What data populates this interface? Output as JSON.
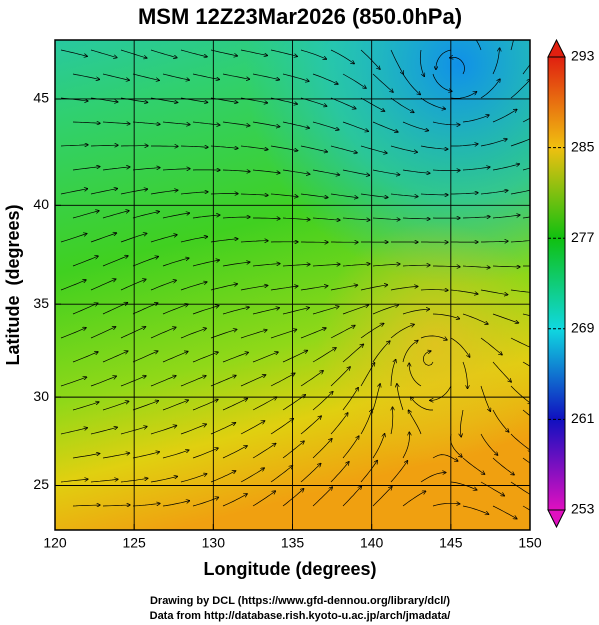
{
  "title": "MSM 12Z23Mar2026 (850.0hPa)",
  "x_axis": {
    "label": "Longitude (degrees)",
    "lim": [
      120,
      150
    ],
    "ticks": [
      120,
      125,
      130,
      135,
      140,
      145,
      150
    ]
  },
  "y_axis": {
    "label": "Latitude  (degrees)",
    "lim": [
      22.4,
      47.6
    ],
    "ticks": [
      25,
      30,
      35,
      40,
      45
    ],
    "projection": "mercator"
  },
  "grid": true,
  "colorbar": {
    "lim": [
      253,
      293
    ],
    "ticks": [
      253,
      261,
      269,
      277,
      285,
      293
    ],
    "colors": [
      "#e010c0",
      "#1010c0",
      "#10d8e0",
      "#10c010",
      "#f0c010",
      "#e02010"
    ]
  },
  "footer": [
    "Drawing by DCL (https://www.gfd-dennou.org/library/dcl/)",
    "Data from http://database.rish.kyoto-u.ac.jp/arch/jmadata/"
  ]
}
